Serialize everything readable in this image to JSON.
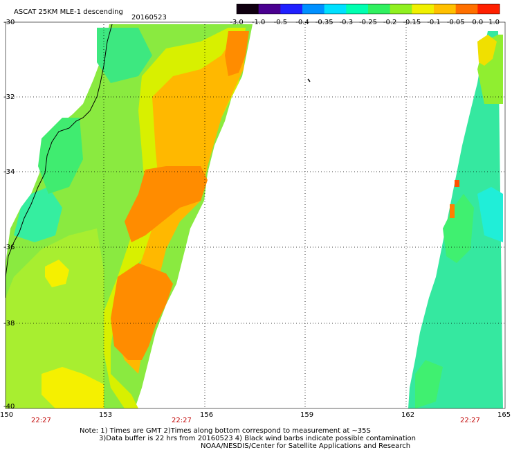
{
  "title": "ASCAT 25KM MLE-1 descending",
  "date": "20160523",
  "colorbar": {
    "labels": [
      "-3.0",
      "-1.0",
      "-0.5",
      "-0.4",
      "-0.35",
      "-0.3",
      "-0.25",
      "-0.2",
      "-0.15",
      "-0.1",
      "-0.05",
      "0.0",
      "1.0"
    ],
    "colors": [
      "#100010",
      "#4a0090",
      "#2020ff",
      "#0090ff",
      "#00e0ff",
      "#00ffb0",
      "#30f060",
      "#90f020",
      "#f0f000",
      "#ffc000",
      "#ff7000",
      "#ff2000"
    ]
  },
  "lat_labels": [
    "-30",
    "-32",
    "-34",
    "-36",
    "-38",
    "-40"
  ],
  "lon_labels": [
    "150",
    "153",
    "156",
    "159",
    "162",
    "165"
  ],
  "time_labels": [
    "22:27",
    "22:27",
    "22:27"
  ],
  "notes": [
    "Note: 1) Times are GMT 2)Times along bottom correspond to measurement at ~35S",
    "3)Data buffer is 22 hrs from 20160523 4) Black wind barbs indicate possible contamination",
    "NOAA/NESDIS/Center for Satellite Applications and Research"
  ]
}
